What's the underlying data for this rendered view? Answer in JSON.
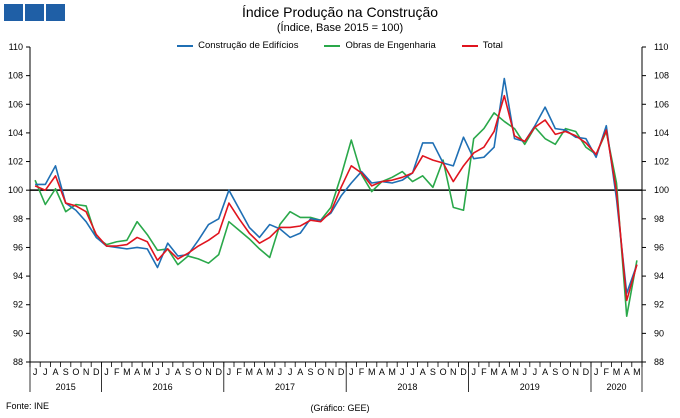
{
  "header": {
    "title": "Índice Produção na Construção",
    "subtitle": "(Índice, Base 2015 = 100)"
  },
  "footer": {
    "source": "Fonte: INE",
    "credit": "(Gráfico: GEE)"
  },
  "colors": {
    "construcao": "#1f6fb4",
    "obras": "#2aa84a",
    "total": "#e0141e",
    "logo": "#1f5fa6",
    "reference": "#000000"
  },
  "chart_data": {
    "type": "line",
    "title": "Índice Produção na Construção",
    "subtitle": "(Índice, Base 2015 = 100)",
    "ylim": [
      88,
      110
    ],
    "yticks": [
      88,
      90,
      92,
      94,
      96,
      98,
      100,
      102,
      104,
      106,
      108,
      110
    ],
    "reference_line": 100,
    "grid": false,
    "legend_position": "top",
    "x": [
      "2015-06",
      "2015-07",
      "2015-08",
      "2015-09",
      "2015-10",
      "2015-11",
      "2015-12",
      "2016-01",
      "2016-02",
      "2016-03",
      "2016-04",
      "2016-05",
      "2016-06",
      "2016-07",
      "2016-08",
      "2016-09",
      "2016-10",
      "2016-11",
      "2016-12",
      "2017-01",
      "2017-02",
      "2017-03",
      "2017-04",
      "2017-05",
      "2017-06",
      "2017-07",
      "2017-08",
      "2017-09",
      "2017-10",
      "2017-11",
      "2017-12",
      "2018-01",
      "2018-02",
      "2018-03",
      "2018-04",
      "2018-05",
      "2018-06",
      "2018-07",
      "2018-08",
      "2018-09",
      "2018-10",
      "2018-11",
      "2018-12",
      "2019-01",
      "2019-02",
      "2019-03",
      "2019-04",
      "2019-05",
      "2019-06",
      "2019-07",
      "2019-08",
      "2019-09",
      "2019-10",
      "2019-11",
      "2019-12",
      "2020-01",
      "2020-02",
      "2020-03",
      "2020-04",
      "2020-05"
    ],
    "month_letters": [
      "J",
      "J",
      "A",
      "S",
      "O",
      "N",
      "D",
      "J",
      "F",
      "M",
      "A",
      "M",
      "J",
      "J",
      "A",
      "S",
      "O",
      "N",
      "D",
      "J",
      "F",
      "M",
      "A",
      "M",
      "J",
      "J",
      "A",
      "S",
      "O",
      "N",
      "D",
      "J",
      "F",
      "M",
      "A",
      "M",
      "J",
      "J",
      "A",
      "S",
      "O",
      "N",
      "D",
      "J",
      "F",
      "M",
      "A",
      "M",
      "J",
      "J",
      "A",
      "S",
      "O",
      "N",
      "D",
      "J",
      "F",
      "M",
      "A",
      "M"
    ],
    "year_labels": [
      {
        "label": "2015",
        "start": 0,
        "end": 6
      },
      {
        "label": "2016",
        "start": 7,
        "end": 18
      },
      {
        "label": "2017",
        "start": 19,
        "end": 30
      },
      {
        "label": "2018",
        "start": 31,
        "end": 42
      },
      {
        "label": "2019",
        "start": 43,
        "end": 54
      },
      {
        "label": "2020",
        "start": 55,
        "end": 59
      }
    ],
    "series": [
      {
        "name": "Construção de Edifícios",
        "color": "#1f6fb4",
        "values": [
          100.4,
          100.4,
          101.7,
          99.1,
          98.6,
          97.8,
          96.7,
          96.1,
          96.0,
          95.9,
          96.0,
          95.9,
          94.6,
          96.3,
          95.4,
          95.5,
          96.5,
          97.6,
          98.0,
          100.0,
          98.7,
          97.4,
          96.7,
          97.6,
          97.3,
          96.7,
          97.0,
          98.0,
          97.9,
          98.4,
          99.6,
          100.5,
          101.3,
          100.5,
          100.6,
          100.5,
          100.7,
          101.2,
          103.3,
          103.3,
          101.9,
          101.7,
          103.7,
          102.2,
          102.3,
          103.0,
          107.8,
          103.6,
          103.4,
          104.5,
          105.8,
          104.3,
          104.2,
          103.7,
          103.6,
          102.3,
          104.5,
          99.4,
          92.8,
          94.8
        ]
      },
      {
        "name": "Obras de Engenharia",
        "color": "#2aa84a",
        "values": [
          100.7,
          99.0,
          100.1,
          98.5,
          99.0,
          98.9,
          96.7,
          96.2,
          96.4,
          96.5,
          97.8,
          96.9,
          95.8,
          95.9,
          94.8,
          95.4,
          95.2,
          94.9,
          95.5,
          97.8,
          97.2,
          96.6,
          95.9,
          95.3,
          97.6,
          98.5,
          98.1,
          98.1,
          97.9,
          98.8,
          101.0,
          103.5,
          101.1,
          99.9,
          100.6,
          100.9,
          101.3,
          100.6,
          101.0,
          100.2,
          102.1,
          98.8,
          98.6,
          103.6,
          104.3,
          105.4,
          104.8,
          104.3,
          103.2,
          104.4,
          103.6,
          103.2,
          104.3,
          104.1,
          103.0,
          102.5,
          104.1,
          100.5,
          91.2,
          95.1
        ]
      },
      {
        "name": "Total",
        "color": "#e0141e",
        "values": [
          100.3,
          100.0,
          101.0,
          99.1,
          98.9,
          98.5,
          96.9,
          96.1,
          96.1,
          96.2,
          96.7,
          96.4,
          95.1,
          95.9,
          95.2,
          95.6,
          96.1,
          96.5,
          97.0,
          99.1,
          98.0,
          97.0,
          96.3,
          96.7,
          97.4,
          97.4,
          97.5,
          97.9,
          97.8,
          98.5,
          100.2,
          101.7,
          101.2,
          100.3,
          100.6,
          100.7,
          100.9,
          101.2,
          102.4,
          102.1,
          101.9,
          100.6,
          101.7,
          102.6,
          103.0,
          104.1,
          106.6,
          103.8,
          103.4,
          104.4,
          104.9,
          103.9,
          104.1,
          103.8,
          103.3,
          102.5,
          104.2,
          99.9,
          92.3,
          94.8
        ]
      }
    ]
  }
}
